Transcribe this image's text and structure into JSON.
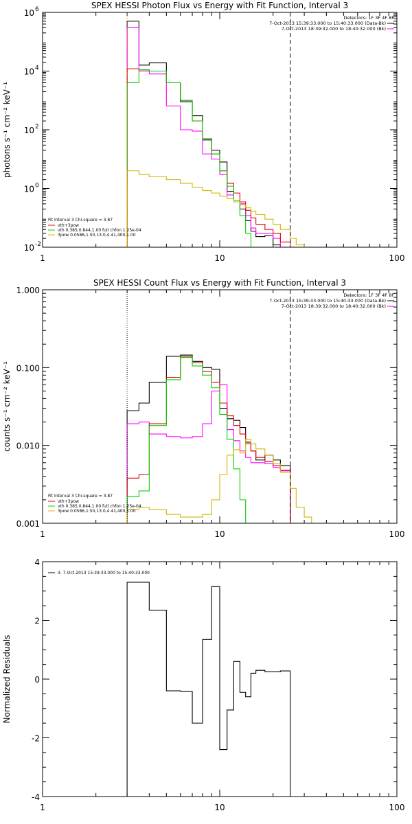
{
  "chart_data": [
    {
      "type": "line",
      "title": "SPEX HESSI Photon Flux vs Energy with Fit Function, Interval 3",
      "ylabel": "photons s⁻¹ cm⁻² keV⁻¹",
      "xlabel": "",
      "xscale": "log",
      "yscale": "log",
      "xlim": [
        1,
        100
      ],
      "ylim": [
        0.01,
        1000000
      ],
      "xticks": [
        {
          "value": 1,
          "label": "1"
        },
        {
          "value": 10,
          "label": "10"
        },
        {
          "value": 100,
          "label": "100"
        }
      ],
      "yticks": [
        {
          "value": 0.01,
          "base": "10",
          "exp": "-2"
        },
        {
          "value": 1,
          "base": "10",
          "exp": "0"
        },
        {
          "value": 100,
          "base": "10",
          "exp": "2"
        },
        {
          "value": 10000,
          "base": "10",
          "exp": "4"
        },
        {
          "value": 1000000,
          "base": "10",
          "exp": "6"
        }
      ],
      "vlines": [
        {
          "x": 3,
          "style": "dotted",
          "color": "#e07000"
        },
        {
          "x": 25,
          "style": "dashed",
          "color": "#000000"
        }
      ],
      "info": {
        "line1": "Detectors: 1F 3F 4F 8F",
        "line2": "7-Oct-2013 15:39:33.000 to 15:40:33.000 (Data-Bk)",
        "line3": "7-Oct-2013 18:39:32.000 to 18:40:32.000 (Bk)"
      },
      "legend": {
        "header": "Fit Interval 3   Chi-square = 3.87",
        "items": [
          {
            "label": "vth+3pow",
            "color": "#e00000"
          },
          {
            "label": "vth 0.385,0.844,1.00  full chfon 1.25e-04",
            "color": "#00d000"
          },
          {
            "label": "3pow 0.0586,1.50,13.0,4.41,400,1.00",
            "color": "#d4b400"
          }
        ]
      },
      "series": [
        {
          "color": "#000000",
          "edges": [
            3,
            3.5,
            4,
            5,
            6,
            7,
            8,
            9,
            10,
            11,
            12,
            13,
            14,
            15,
            16,
            18,
            20,
            22,
            25
          ],
          "values": [
            500000,
            16000,
            19000,
            4000,
            900,
            300,
            45,
            20,
            8,
            0.8,
            0.4,
            0.2,
            0.08,
            0.035,
            0.023,
            0.025,
            0.012,
            0.01
          ]
        },
        {
          "color": "#ff00ff",
          "edges": [
            3,
            3.5,
            4,
            5,
            6,
            7,
            8,
            9,
            10,
            11,
            12,
            13,
            14,
            15,
            16,
            18,
            20,
            22,
            25
          ],
          "values": [
            300000,
            10000,
            8000,
            650,
            100,
            90,
            15,
            10,
            3,
            0.6,
            0.4,
            0.3,
            0.12,
            0.045,
            0.03,
            0.03,
            0.02,
            0.01
          ]
        },
        {
          "color": "#e00000",
          "edges": [
            3,
            3.5,
            4,
            5,
            6,
            7,
            8,
            9,
            10,
            11,
            12,
            13,
            14,
            15,
            16,
            18,
            20,
            22,
            25
          ],
          "values": [
            12000,
            11000,
            10000,
            4000,
            1000,
            200,
            50,
            15,
            4,
            1.5,
            0.7,
            0.35,
            0.18,
            0.1,
            0.06,
            0.04,
            0.03,
            0.015
          ]
        },
        {
          "color": "#00d000",
          "edges": [
            3,
            3.5,
            4,
            5,
            6,
            7,
            8,
            9,
            10,
            11,
            12,
            13,
            14,
            15
          ],
          "values": [
            4000,
            11000,
            10000,
            4000,
            1000,
            200,
            50,
            15,
            4,
            1.2,
            0.4,
            0.12,
            0.03
          ]
        },
        {
          "color": "#d4b400",
          "edges": [
            3,
            3.5,
            4,
            5,
            6,
            7,
            8,
            9,
            10,
            11,
            12,
            13,
            14,
            15,
            16,
            18,
            20,
            22,
            25,
            27,
            30
          ],
          "values": [
            4,
            3,
            2.5,
            2,
            1.5,
            1.1,
            0.85,
            0.7,
            0.55,
            0.45,
            0.35,
            0.28,
            0.22,
            0.17,
            0.13,
            0.09,
            0.06,
            0.04,
            0.02,
            0.012
          ]
        }
      ]
    },
    {
      "type": "line",
      "title": "SPEX HESSI Count Flux vs Energy with Fit Function, Interval 3",
      "ylabel": "counts s⁻¹ cm⁻² keV⁻¹",
      "xlabel": "",
      "xscale": "log",
      "yscale": "log",
      "xlim": [
        1,
        100
      ],
      "ylim": [
        0.001,
        1
      ],
      "xticks": [
        {
          "value": 1,
          "label": "1"
        },
        {
          "value": 10,
          "label": "10"
        },
        {
          "value": 100,
          "label": "100"
        }
      ],
      "yticks": [
        {
          "value": 0.001,
          "label": "0.001"
        },
        {
          "value": 0.01,
          "label": "0.010"
        },
        {
          "value": 0.1,
          "label": "0.100"
        },
        {
          "value": 1,
          "label": "1.000"
        }
      ],
      "vlines": [
        {
          "x": 3,
          "style": "dotted",
          "color": "#000000"
        },
        {
          "x": 25,
          "style": "dashed",
          "color": "#000000"
        }
      ],
      "info": {
        "line1": "Detectors: 1F 3F 4F 8F",
        "line2": "7-Oct-2013 15:39:33.000 to 15:40:33.000 (Data-Bk)",
        "line3": "7-Oct-2013 18:39:32.000 to 18:40:32.000 (Bk)"
      },
      "legend": {
        "header": "Fit Interval 3   Chi-square = 3.87",
        "items": [
          {
            "label": "vth+3pow",
            "color": "#e00000"
          },
          {
            "label": "vth 0.385,0.844,1.00  full chfon 1.25e-04",
            "color": "#00d000"
          },
          {
            "label": "3pow 0.0586,1.50,13.0,4.41,400,1.00",
            "color": "#d4b400"
          }
        ]
      },
      "series": [
        {
          "color": "#000000",
          "edges": [
            3,
            3.5,
            4,
            5,
            6,
            7,
            8,
            9,
            10,
            11,
            12,
            13,
            14,
            15,
            16,
            18,
            20,
            22,
            25
          ],
          "values": [
            0.028,
            0.035,
            0.065,
            0.14,
            0.145,
            0.12,
            0.1,
            0.095,
            0.03,
            0.022,
            0.021,
            0.017,
            0.011,
            0.0085,
            0.0065,
            0.0075,
            0.0065,
            0.0055
          ]
        },
        {
          "color": "#ff00ff",
          "edges": [
            3,
            3.5,
            4,
            5,
            6,
            7,
            8,
            9,
            10,
            11,
            12,
            13,
            14,
            15,
            16,
            18,
            20,
            22,
            25
          ],
          "values": [
            0.019,
            0.02,
            0.014,
            0.013,
            0.0125,
            0.013,
            0.019,
            0.05,
            0.06,
            0.016,
            0.0115,
            0.0085,
            0.007,
            0.006,
            0.006,
            0.0058,
            0.0052,
            0.0047
          ]
        },
        {
          "color": "#e00000",
          "edges": [
            3,
            3.5,
            4,
            5,
            6,
            7,
            8,
            9,
            10,
            11,
            12,
            13,
            14,
            15,
            16,
            18,
            20,
            22,
            25
          ],
          "values": [
            0.0038,
            0.0042,
            0.019,
            0.075,
            0.14,
            0.115,
            0.09,
            0.065,
            0.035,
            0.024,
            0.018,
            0.014,
            0.0105,
            0.0085,
            0.007,
            0.0062,
            0.0055,
            0.0048
          ]
        },
        {
          "color": "#00d000",
          "edges": [
            3,
            3.5,
            4,
            5,
            6,
            7,
            8,
            9,
            10,
            11,
            12,
            13,
            14,
            15
          ],
          "values": [
            0.0022,
            0.0026,
            0.018,
            0.07,
            0.135,
            0.105,
            0.08,
            0.055,
            0.025,
            0.012,
            0.005,
            0.002,
            0.001
          ]
        },
        {
          "color": "#d4b400",
          "edges": [
            3,
            3.5,
            4,
            5,
            6,
            7,
            8,
            9,
            10,
            11,
            12,
            13,
            14,
            15,
            16,
            18,
            20,
            22,
            25,
            27,
            30,
            33
          ],
          "values": [
            0.0015,
            0.0016,
            0.0015,
            0.0013,
            0.0012,
            0.0012,
            0.0013,
            0.002,
            0.0042,
            0.0075,
            0.0088,
            0.008,
            0.012,
            0.0105,
            0.009,
            0.0075,
            0.0058,
            0.0045,
            0.0028,
            0.0016,
            0.0012
          ]
        }
      ]
    },
    {
      "type": "line",
      "title": "",
      "ylabel": "Normalized Residuals",
      "xlabel": "",
      "xscale": "log",
      "yscale": "linear",
      "xlim": [
        1,
        100
      ],
      "ylim": [
        -4,
        4
      ],
      "xticks": [
        {
          "value": 1,
          "label": "1"
        },
        {
          "value": 10,
          "label": "10"
        },
        {
          "value": 100,
          "label": "100"
        }
      ],
      "yticks": [
        {
          "value": -4,
          "label": "-4"
        },
        {
          "value": -2,
          "label": "-2"
        },
        {
          "value": 0,
          "label": "0"
        },
        {
          "value": 2,
          "label": "2"
        },
        {
          "value": 4,
          "label": "4"
        }
      ],
      "legend": {
        "header": "",
        "items": [
          {
            "label": "3.  7-Oct-2013 15:39:33.000 to 15:40:33.000",
            "color": "#000000"
          }
        ]
      },
      "series": [
        {
          "color": "#000000",
          "edges": [
            3,
            4,
            5,
            6,
            7,
            8,
            9,
            10,
            11,
            12,
            13,
            14,
            15,
            16,
            18,
            20,
            22,
            25
          ],
          "values": [
            3.3,
            2.35,
            -0.4,
            -0.42,
            -1.5,
            1.35,
            3.15,
            -2.4,
            -1.05,
            0.6,
            -0.45,
            -0.6,
            0.2,
            0.3,
            0.25,
            0.25,
            0.28
          ],
          "drop_to_bottom": true
        }
      ]
    }
  ]
}
